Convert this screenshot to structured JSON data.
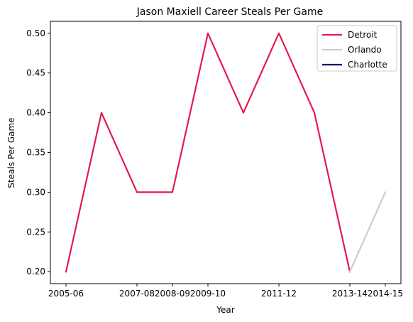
{
  "chart_data": {
    "type": "line",
    "title": "Jason Maxiell Career Steals Per Game",
    "xlabel": "Year",
    "ylabel": "Steals Per Game",
    "x": [
      "2005-06",
      "2006-07",
      "2007-08",
      "2008-09",
      "2009-10",
      "2010-11",
      "2011-12",
      "2012-13",
      "2013-14",
      "2014-15"
    ],
    "x_tick_labels": [
      "2005-06",
      "2007-08",
      "2008-09",
      "2009-10",
      "2011-12",
      "2013-14",
      "2014-15"
    ],
    "y_ticks": [
      0.2,
      0.25,
      0.3,
      0.35,
      0.4,
      0.45,
      0.5
    ],
    "y_tick_labels": [
      "0.20",
      "0.25",
      "0.30",
      "0.35",
      "0.40",
      "0.45",
      "0.50"
    ],
    "ylim": [
      0.185,
      0.515
    ],
    "grid": false,
    "legend_position": "top-right",
    "series": [
      {
        "name": "Detroit",
        "color": "#e31b4c",
        "points": [
          {
            "x": "2005-06",
            "y": 0.2
          },
          {
            "x": "2006-07",
            "y": 0.4
          },
          {
            "x": "2007-08",
            "y": 0.3
          },
          {
            "x": "2008-09",
            "y": 0.3
          },
          {
            "x": "2009-10",
            "y": 0.5
          },
          {
            "x": "2010-11",
            "y": 0.4
          },
          {
            "x": "2011-12",
            "y": 0.5
          },
          {
            "x": "2012-13",
            "y": 0.4
          },
          {
            "x": "2013-14",
            "y": 0.2
          }
        ]
      },
      {
        "name": "Orlando",
        "color": "#c4ced4",
        "points": [
          {
            "x": "2013-14",
            "y": 0.2
          },
          {
            "x": "2014-15",
            "y": 0.3
          }
        ]
      },
      {
        "name": "Charlotte",
        "color": "#1d1160",
        "points": []
      }
    ]
  }
}
